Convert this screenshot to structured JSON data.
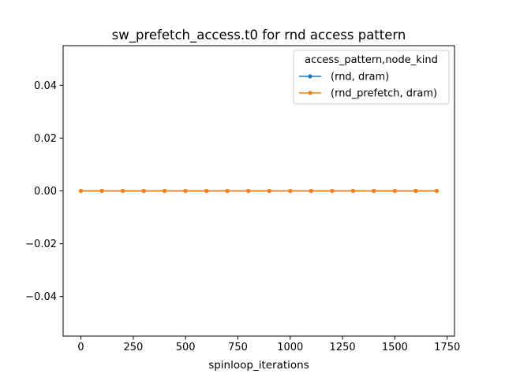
{
  "chart_data": {
    "type": "line",
    "title": "sw_prefetch_access.t0 for rnd access pattern",
    "xlabel": "spinloop_iterations",
    "ylabel": "",
    "xlim": [
      -85,
      1785
    ],
    "ylim": [
      -0.055,
      0.055
    ],
    "x_ticks": [
      0,
      250,
      500,
      750,
      1000,
      1250,
      1500,
      1750
    ],
    "x_tick_labels": [
      "0",
      "250",
      "500",
      "750",
      "1000",
      "1250",
      "1500",
      "1750"
    ],
    "y_ticks": [
      -0.04,
      -0.02,
      0.0,
      0.02,
      0.04
    ],
    "y_tick_labels": [
      "−0.04",
      "−0.02",
      "0.00",
      "0.02",
      "0.04"
    ],
    "grid": false,
    "legend": {
      "title": "access_pattern,node_kind",
      "placement": "top-right"
    },
    "x": [
      0,
      100,
      200,
      300,
      400,
      500,
      600,
      700,
      800,
      900,
      1000,
      1100,
      1200,
      1300,
      1400,
      1500,
      1600,
      1700
    ],
    "series": [
      {
        "name": "(rnd, dram)",
        "color": "#1f77b4",
        "values": [
          0,
          0,
          0,
          0,
          0,
          0,
          0,
          0,
          0,
          0,
          0,
          0,
          0,
          0,
          0,
          0,
          0,
          0
        ]
      },
      {
        "name": "(rnd_prefetch, dram)",
        "color": "#ff7f0e",
        "values": [
          0,
          0,
          0,
          0,
          0,
          0,
          0,
          0,
          0,
          0,
          0,
          0,
          0,
          0,
          0,
          0,
          0,
          0
        ]
      }
    ]
  }
}
